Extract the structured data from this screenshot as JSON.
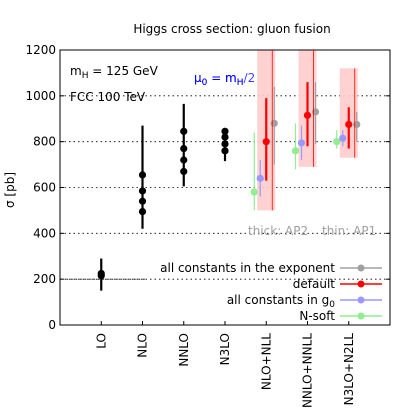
{
  "chart_data": {
    "type": "scatter",
    "title": "Higgs cross section: gluon fusion",
    "ylabel": "σ [pb]",
    "xlabel": "",
    "ylim": [
      0,
      1200
    ],
    "yticks": [
      0,
      200,
      400,
      600,
      800,
      1000,
      1200
    ],
    "grid": "horizontal dotted",
    "categories": [
      "LO",
      "NLO",
      "NNLO",
      "N3LO",
      "NLO+NLL",
      "NNLO+NNLL",
      "N3LO+N2LL"
    ],
    "annotations": {
      "mass": "mH = 125 GeV",
      "collider": "FCC 100 TeV",
      "scale_line1": "μ0 = mH",
      "scale_line2": "μ0 = mH/2",
      "thick": "thick: AP2",
      "thin": "thin: AP1"
    },
    "fixed_order": {
      "color": "#000000",
      "points": [
        {
          "category": "LO",
          "values": [
            215,
            225
          ],
          "band": [
            150,
            290
          ],
          "ref_line": 200
        },
        {
          "category": "NLO",
          "values": [
            495,
            540,
            585,
            655
          ],
          "band": [
            420,
            870
          ]
        },
        {
          "category": "NNLO",
          "values": [
            670,
            720,
            770,
            845
          ],
          "band": [
            605,
            965
          ]
        },
        {
          "category": "N3LO",
          "values": [
            760,
            790,
            820,
            845
          ],
          "band": [
            715,
            860
          ]
        }
      ]
    },
    "legend_position": "bottom-right",
    "series": [
      {
        "name": "all constants in the exponent",
        "color": "#a0a0a0",
        "points": [
          {
            "category": "NLO+NLL",
            "value": 880,
            "band": [
              700,
              1040
            ]
          },
          {
            "category": "NNLO+NNLL",
            "value": 930,
            "band": [
              790,
              1060
            ]
          },
          {
            "category": "N3LO+N2LL",
            "value": 875,
            "band": [
              800,
              930
            ]
          }
        ]
      },
      {
        "name": "default",
        "color": "#ff0000",
        "points": [
          {
            "category": "NLO+NLL",
            "value": 800,
            "band": [
              630,
              990
            ],
            "box": [
              500,
              1200
            ]
          },
          {
            "category": "NNLO+NNLL",
            "value": 915,
            "band": [
              780,
              1060
            ],
            "box": [
              690,
              1200
            ]
          },
          {
            "category": "N3LO+N2LL",
            "value": 875,
            "band": [
              770,
              950
            ],
            "box": [
              730,
              1120
            ]
          }
        ]
      },
      {
        "name": "all constants in g0",
        "color": "#9999ff",
        "points": [
          {
            "category": "NLO+NLL",
            "value": 640,
            "band": [
              560,
              720
            ]
          },
          {
            "category": "NNLO+NNLL",
            "value": 795,
            "band": [
              720,
              870
            ]
          },
          {
            "category": "N3LO+N2LL",
            "value": 815,
            "band": [
              780,
              850
            ]
          }
        ]
      },
      {
        "name": "N-soft",
        "color": "#90ee90",
        "points": [
          {
            "category": "NLO+NLL",
            "value": 580,
            "band": [
              500,
              840
            ]
          },
          {
            "category": "NNLO+NNLL",
            "value": 760,
            "band": [
              680,
              880
            ]
          },
          {
            "category": "N3LO+N2LL",
            "value": 800,
            "band": [
              770,
              850
            ]
          }
        ]
      }
    ]
  }
}
